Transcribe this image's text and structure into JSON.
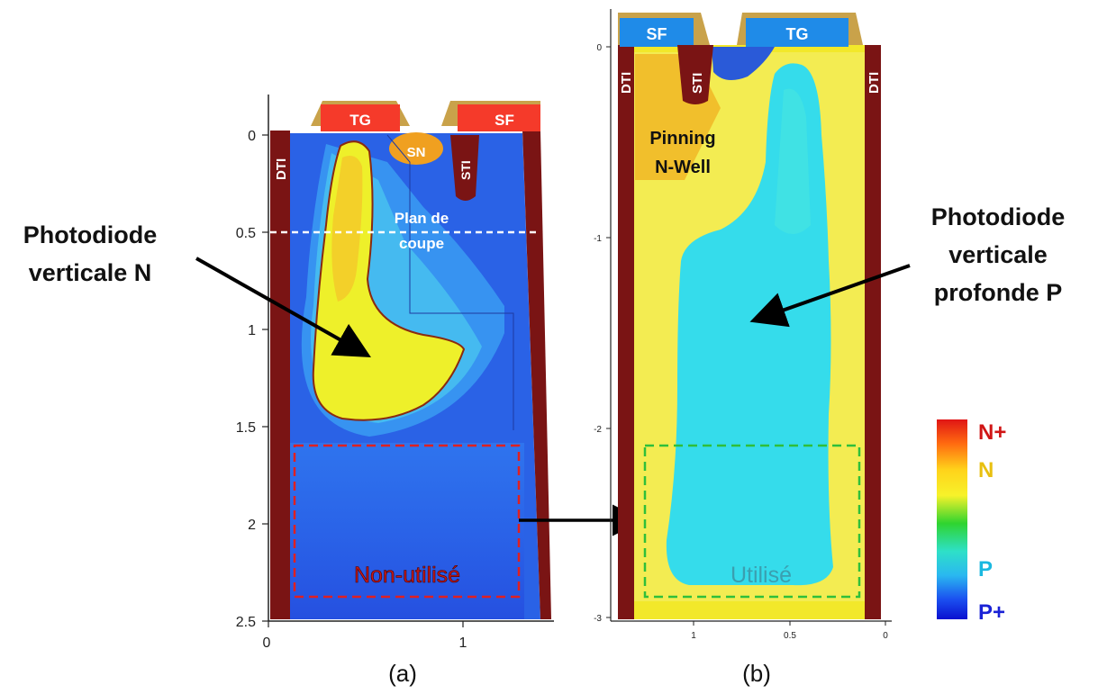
{
  "panel_a": {
    "caption": "(a)",
    "y_ticks": [
      "0",
      "0.5",
      "1",
      "1.5",
      "2",
      "2.5"
    ],
    "x_ticks": [
      "0",
      "1"
    ],
    "labels": {
      "dti": "DTI",
      "tg": "TG",
      "sf": "SF",
      "sn": "SN",
      "sti": "STI",
      "cut_plane_line1": "Plan de",
      "cut_plane_line2": "coupe",
      "unused": "Non-utilisé"
    },
    "annotation_line1": "Photodiode",
    "annotation_line2": "verticale N"
  },
  "panel_b": {
    "caption": "(b)",
    "y_ticks": [
      "0",
      "-1",
      "-2",
      "-3"
    ],
    "x_ticks": [
      "1",
      "0.5",
      "0"
    ],
    "labels": {
      "dti_left": "DTI",
      "dti_right": "DTI",
      "sf": "SF",
      "tg": "TG",
      "sti": "STI",
      "pinning_line1": "Pinning",
      "pinning_line2": "N-Well",
      "used": "Utilisé"
    },
    "annotation_line1": "Photodiode",
    "annotation_line2": "verticale",
    "annotation_line3": "profonde P"
  },
  "legend": {
    "labels": [
      "N+",
      "N",
      "P",
      "P+"
    ],
    "colors": {
      "n_plus": "#e02020",
      "n": "#f2d21a",
      "p": "#29c7e8",
      "p_plus": "#1a22d6"
    }
  }
}
